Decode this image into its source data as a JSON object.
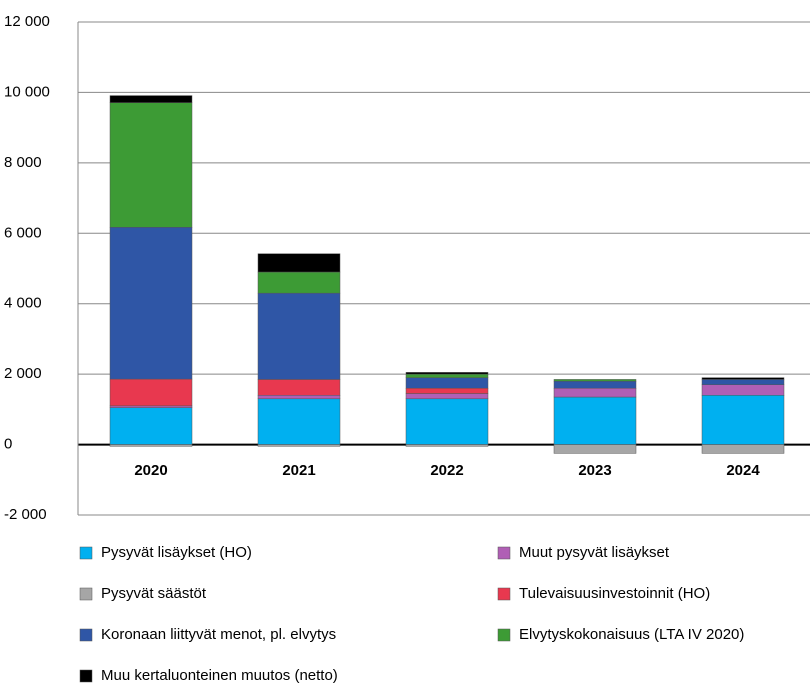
{
  "chart_data": {
    "type": "stacked_bar",
    "categories": [
      "2020",
      "2021",
      "2022",
      "2023",
      "2024"
    ],
    "series": [
      {
        "name": "Pysyvät lisäykset (HO)",
        "color": "#00b0f0",
        "values": [
          1050,
          1300,
          1300,
          1350,
          1400
        ]
      },
      {
        "name": "Muut pysyvät lisäykset",
        "color": "#b05fb5",
        "values": [
          50,
          100,
          150,
          250,
          300
        ]
      },
      {
        "name": "Pysyvät säästöt",
        "color": "#a6a6a6",
        "values": [
          -50,
          -50,
          -50,
          -250,
          -250
        ]
      },
      {
        "name": "Tulevaisuusinvestoinnit (HO)",
        "color": "#e8384f",
        "values": [
          760,
          450,
          150,
          0,
          0
        ]
      },
      {
        "name": "Koronaan liittyvät menot, pl. elvytys",
        "color": "#2f56a6",
        "values": [
          4310,
          2450,
          300,
          200,
          150
        ]
      },
      {
        "name": "Elvytyskokonaisuus (LTA IV 2020)",
        "color": "#3d9b35",
        "values": [
          3540,
          600,
          100,
          50,
          0
        ]
      },
      {
        "name": "Muu kertaluonteinen muutos (netto)",
        "color": "#000000",
        "values": [
          200,
          520,
          50,
          0,
          50
        ]
      }
    ],
    "ylim": [
      -2000,
      12000
    ],
    "yticks": [
      {
        "value": -2000,
        "label": "-2 000"
      },
      0,
      {
        "value": 2000,
        "label": "2 000"
      },
      {
        "value": 4000,
        "label": "4 000"
      },
      {
        "value": 6000,
        "label": "6 000"
      },
      {
        "value": 8000,
        "label": "8 000"
      },
      {
        "value": 10000,
        "label": "10 000"
      },
      {
        "value": 12000,
        "label": "12 000"
      }
    ],
    "grid": true
  }
}
